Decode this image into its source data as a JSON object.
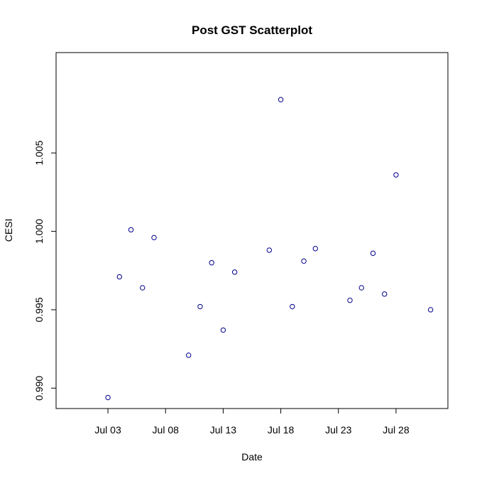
{
  "chart_data": {
    "type": "scatter",
    "title": "Post GST Scatterplot",
    "xlabel": "Date",
    "ylabel": "CESI",
    "grid": false,
    "legend": "none",
    "x_ticks": [
      "Jul 03",
      "Jul 08",
      "Jul 13",
      "Jul 18",
      "Jul 23",
      "Jul 28"
    ],
    "y_ticks": [
      "0.990",
      "0.995",
      "1.000",
      "1.005"
    ],
    "xlim": [
      "Jun 28.5",
      "Aug 01.5"
    ],
    "ylim": [
      0.9887,
      1.0114
    ],
    "colors": {
      "point_stroke": "#00008b",
      "axis": "#000000",
      "background": "#ffffff"
    },
    "points": [
      {
        "x": "Jul 03",
        "y": 0.9894
      },
      {
        "x": "Jul 04",
        "y": 0.9971
      },
      {
        "x": "Jul 05",
        "y": 1.0001
      },
      {
        "x": "Jul 06",
        "y": 0.9964
      },
      {
        "x": "Jul 07",
        "y": 0.9996
      },
      {
        "x": "Jul 10",
        "y": 0.9921
      },
      {
        "x": "Jul 11",
        "y": 0.9952
      },
      {
        "x": "Jul 12",
        "y": 0.998
      },
      {
        "x": "Jul 13",
        "y": 0.9937
      },
      {
        "x": "Jul 14",
        "y": 0.9974
      },
      {
        "x": "Jul 17",
        "y": 0.9988
      },
      {
        "x": "Jul 18",
        "y": 1.0084
      },
      {
        "x": "Jul 19",
        "y": 0.9952
      },
      {
        "x": "Jul 20",
        "y": 0.9981
      },
      {
        "x": "Jul 21",
        "y": 0.9989
      },
      {
        "x": "Jul 24",
        "y": 0.9956
      },
      {
        "x": "Jul 25",
        "y": 0.9964
      },
      {
        "x": "Jul 26",
        "y": 0.9986
      },
      {
        "x": "Jul 27",
        "y": 0.996
      },
      {
        "x": "Jul 28",
        "y": 1.0036
      },
      {
        "x": "Jul 31",
        "y": 0.995
      }
    ]
  }
}
